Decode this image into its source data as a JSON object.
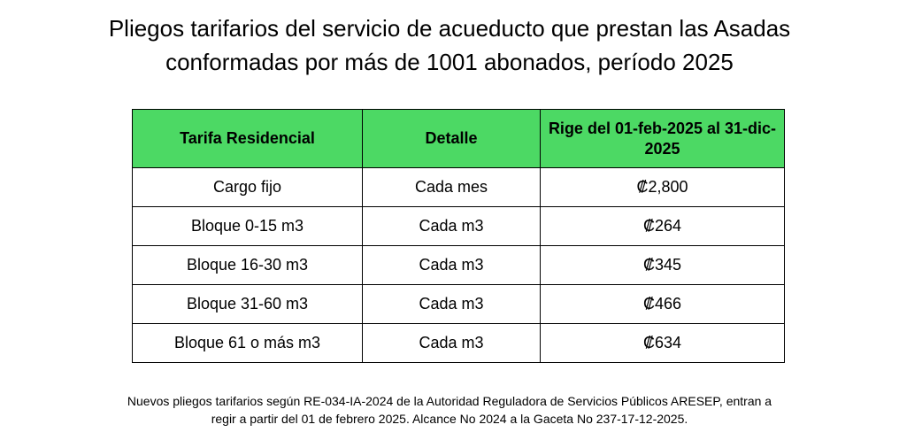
{
  "title": {
    "line1": "Pliegos tarifarios del servicio de acueducto que prestan las Asadas",
    "line2": "conformadas por más de 1001 abonados, período 2025"
  },
  "table": {
    "headers": {
      "col1": "Tarifa Residencial",
      "col2": "Detalle",
      "col3": "Rige del 01-feb-2025 al 31-dic-2025"
    },
    "rows": [
      {
        "tarifa": "Cargo fijo",
        "detalle": "Cada mes",
        "monto": "₡2,800"
      },
      {
        "tarifa": "Bloque 0-15 m3",
        "detalle": "Cada m3",
        "monto": "₡264"
      },
      {
        "tarifa": "Bloque 16-30 m3",
        "detalle": "Cada m3",
        "monto": "₡345"
      },
      {
        "tarifa": "Bloque 31-60 m3",
        "detalle": "Cada m3",
        "monto": "₡466"
      },
      {
        "tarifa": "Bloque 61 o más m3",
        "detalle": "Cada m3",
        "monto": "₡634"
      }
    ]
  },
  "footnote": {
    "line1": "Nuevos pliegos tarifarios según RE-034-IA-2024 de la Autoridad Reguladora de Servicios Públicos ARESEP, entran a",
    "line2": "regir a partir del 01 de febrero 2025. Alcance No 2024 a la Gaceta No 237-17-12-2025."
  },
  "colors": {
    "header_background": "#4cd964",
    "border": "#000000",
    "text": "#000000"
  }
}
